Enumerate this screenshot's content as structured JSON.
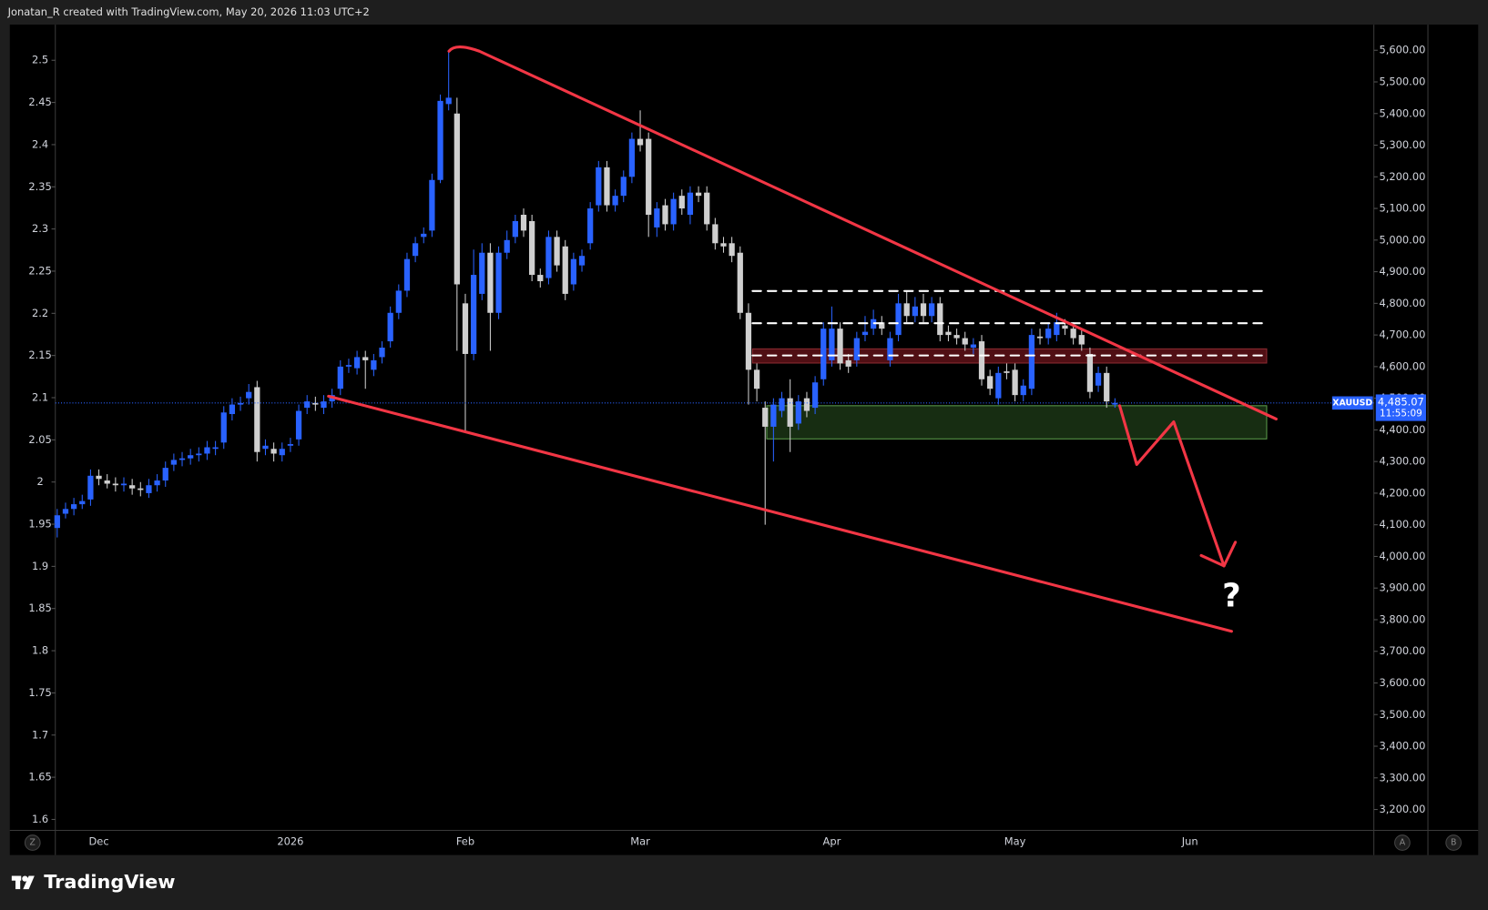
{
  "header": {
    "text": "Jonatan_R created with TradingView.com, May 20, 2026 11:03 UTC+2"
  },
  "chart_data": {
    "type": "candlestick",
    "categories": [
      null,
      null,
      null,
      null,
      null,
      "Dec",
      null,
      null,
      null,
      null,
      null,
      null,
      null,
      null,
      null,
      null,
      null,
      null,
      null,
      null,
      null,
      null,
      null,
      null,
      null,
      null,
      null,
      null,
      "2026",
      null,
      null,
      null,
      null,
      null,
      null,
      null,
      null,
      null,
      null,
      null,
      null,
      null,
      null,
      null,
      null,
      null,
      null,
      null,
      null,
      "Feb",
      null,
      null,
      null,
      null,
      null,
      null,
      null,
      null,
      null,
      null,
      null,
      null,
      null,
      null,
      null,
      null,
      null,
      null,
      null,
      null,
      "Mar",
      null,
      null,
      null,
      null,
      null,
      null,
      null,
      null,
      null,
      null,
      null,
      null,
      null,
      null,
      null,
      null,
      null,
      null,
      null,
      null,
      null,
      null,
      "Apr",
      null,
      null,
      null,
      null,
      null,
      null,
      null,
      null,
      null,
      null,
      null,
      null,
      null,
      null,
      null,
      null,
      null,
      null,
      null,
      null,
      null,
      "May",
      null,
      null,
      null,
      null,
      null,
      null,
      null,
      null,
      null,
      null,
      null,
      null,
      null,
      null,
      null,
      null,
      null,
      null,
      null,
      null,
      "Jun",
      null,
      null,
      null,
      null,
      null,
      null,
      null,
      null,
      null,
      null,
      null,
      null,
      null,
      null,
      null,
      null,
      null,
      null,
      null,
      null,
      null,
      null
    ],
    "open": [
      4090,
      4135,
      4150,
      4165,
      4180,
      4255,
      4240,
      4230,
      4225,
      4225,
      4215,
      4200,
      4225,
      4240,
      4290,
      4305,
      4310,
      4320,
      4325,
      4340,
      4360,
      4450,
      4480,
      4500,
      4535,
      4340,
      4340,
      4320,
      4350,
      4370,
      4470,
      4485,
      4470,
      4490,
      4530,
      4600,
      4595,
      4630,
      4590,
      4630,
      4680,
      4770,
      4840,
      4950,
      5010,
      5030,
      5190,
      5430,
      5400,
      4800,
      4640,
      4830,
      4960,
      4770,
      4960,
      5010,
      5080,
      5060,
      4890,
      4880,
      5010,
      4980,
      4860,
      4920,
      4990,
      5110,
      5230,
      5110,
      5140,
      5200,
      5320,
      5320,
      5040,
      5110,
      5050,
      5140,
      5080,
      5150,
      5150,
      5050,
      4990,
      4990,
      4960,
      4770,
      4590,
      4470,
      4410,
      4460,
      4500,
      4420,
      4500,
      4470,
      4560,
      4620,
      4720,
      4620,
      4620,
      4700,
      4720,
      4740,
      4620,
      4700,
      4800,
      4760,
      4800,
      4760,
      4800,
      4710,
      4700,
      4690,
      4660,
      4680,
      4570,
      4500,
      4585,
      4590,
      4510,
      4530,
      4695,
      4690,
      4700,
      4730,
      4720,
      4700,
      4640,
      4540,
      4580,
      4480,
      null,
      null,
      null,
      null,
      null,
      null,
      null,
      null,
      null,
      null,
      null,
      null,
      null,
      null,
      null,
      null,
      null,
      null,
      null,
      null,
      null,
      null,
      null,
      null,
      null,
      null,
      null,
      null,
      null,
      null,
      null
    ],
    "high": [
      4150,
      4170,
      4185,
      4195,
      4275,
      4275,
      4260,
      4250,
      4250,
      4245,
      4235,
      4245,
      4260,
      4300,
      4325,
      4330,
      4340,
      4345,
      4365,
      4365,
      4475,
      4500,
      4505,
      4545,
      4555,
      4370,
      4360,
      4360,
      4375,
      4480,
      4510,
      4505,
      4510,
      4530,
      4620,
      4625,
      4650,
      4650,
      4640,
      4680,
      4790,
      4860,
      4960,
      5010,
      5040,
      5210,
      5460,
      5600,
      5450,
      4830,
      4970,
      4990,
      4990,
      4980,
      5030,
      5080,
      5100,
      5080,
      4910,
      5030,
      5030,
      5000,
      4960,
      4970,
      5120,
      5250,
      5250,
      5160,
      5220,
      5340,
      5410,
      5340,
      5120,
      5130,
      5150,
      5160,
      5170,
      5170,
      5170,
      5070,
      5010,
      5010,
      4980,
      4800,
      4610,
      4490,
      4500,
      4520,
      4560,
      4510,
      4520,
      4570,
      4740,
      4790,
      4740,
      4640,
      4710,
      4760,
      4780,
      4760,
      4710,
      4830,
      4840,
      4820,
      4830,
      4820,
      4820,
      4730,
      4720,
      4710,
      4690,
      4700,
      4590,
      4600,
      4610,
      4610,
      4560,
      4720,
      4720,
      4740,
      4770,
      4750,
      4740,
      4720,
      4660,
      4600,
      4600,
      4500,
      null,
      null,
      null,
      null,
      null,
      null,
      null,
      null,
      null,
      null,
      null,
      null,
      null,
      null,
      null,
      null,
      null,
      null,
      null,
      null,
      null,
      null,
      null,
      null,
      null,
      null,
      null,
      null,
      null,
      null,
      null
    ],
    "low": [
      4060,
      4120,
      4130,
      4150,
      4160,
      4225,
      4215,
      4205,
      4205,
      4195,
      4190,
      4185,
      4205,
      4220,
      4270,
      4285,
      4290,
      4300,
      4305,
      4320,
      4340,
      4430,
      4460,
      4480,
      4300,
      4320,
      4300,
      4300,
      4330,
      4350,
      4450,
      4460,
      4450,
      4470,
      4510,
      4580,
      4575,
      4530,
      4570,
      4610,
      4660,
      4750,
      4820,
      4930,
      4990,
      5010,
      5180,
      5410,
      4650,
      4395,
      4620,
      4810,
      4650,
      4750,
      4940,
      4990,
      5010,
      4870,
      4850,
      4860,
      4900,
      4810,
      4840,
      4900,
      4970,
      5090,
      5090,
      5090,
      5120,
      5180,
      5280,
      5010,
      5010,
      5030,
      5030,
      5080,
      5050,
      5120,
      5030,
      4970,
      4960,
      4930,
      4750,
      4480,
      4490,
      4100,
      4300,
      4440,
      4330,
      4400,
      4440,
      4450,
      4540,
      4600,
      4590,
      4580,
      4600,
      4680,
      4700,
      4700,
      4600,
      4680,
      4740,
      4740,
      4740,
      4740,
      4680,
      4680,
      4670,
      4650,
      4640,
      4540,
      4510,
      4480,
      4560,
      4490,
      4490,
      4510,
      4670,
      4670,
      4680,
      4700,
      4670,
      4650,
      4500,
      4520,
      4470,
      4470,
      null,
      null,
      null,
      null,
      null,
      null,
      null,
      null,
      null,
      null,
      null,
      null,
      null,
      null,
      null,
      null,
      null,
      null,
      null,
      null,
      null,
      null,
      null,
      null,
      null,
      null,
      null,
      null,
      null,
      null,
      null
    ],
    "close": [
      4130,
      4150,
      4165,
      4175,
      4255,
      4245,
      4230,
      4225,
      4230,
      4215,
      4210,
      4225,
      4240,
      4280,
      4305,
      4310,
      4320,
      4325,
      4345,
      4345,
      4455,
      4480,
      4485,
      4520,
      4330,
      4350,
      4325,
      4340,
      4355,
      4460,
      4490,
      4480,
      4490,
      4510,
      4600,
      4605,
      4630,
      4620,
      4620,
      4660,
      4770,
      4840,
      4940,
      4990,
      5020,
      5190,
      5440,
      5450,
      4860,
      4640,
      4890,
      4960,
      4770,
      4960,
      5000,
      5060,
      5030,
      4890,
      4870,
      5010,
      4920,
      4830,
      4940,
      4950,
      5100,
      5230,
      5110,
      5140,
      5200,
      5320,
      5300,
      5080,
      5100,
      5050,
      5130,
      5100,
      5150,
      5140,
      5050,
      4990,
      4980,
      4950,
      4770,
      4590,
      4530,
      4410,
      4480,
      4500,
      4410,
      4490,
      4460,
      4550,
      4720,
      4720,
      4610,
      4600,
      4690,
      4710,
      4750,
      4720,
      4690,
      4800,
      4760,
      4790,
      4760,
      4800,
      4700,
      4700,
      4690,
      4670,
      4670,
      4560,
      4530,
      4580,
      4580,
      4510,
      4540,
      4700,
      4690,
      4720,
      4740,
      4720,
      4690,
      4670,
      4520,
      4580,
      4490,
      4485.07,
      null,
      null,
      null,
      null,
      null,
      null,
      null,
      null,
      null,
      null,
      null,
      null,
      null,
      null,
      null,
      null,
      null,
      null,
      null,
      null,
      null,
      null,
      null,
      null,
      null,
      null,
      null,
      null,
      null,
      null,
      null
    ],
    "up_color": "#2962ff",
    "down_color": "#cfcfcf",
    "ylim": [
      3134,
      5675
    ],
    "yticks": [
      {
        "value": 3200,
        "label": "3,200.00"
      },
      {
        "value": 3300,
        "label": "3,300.00"
      },
      {
        "value": 3400,
        "label": "3,400.00"
      },
      {
        "value": 3500,
        "label": "3,500.00"
      },
      {
        "value": 3600,
        "label": "3,600.00"
      },
      {
        "value": 3700,
        "label": "3,700.00"
      },
      {
        "value": 3800,
        "label": "3,800.00"
      },
      {
        "value": 3900,
        "label": "3,900.00"
      },
      {
        "value": 4000,
        "label": "4,000.00"
      },
      {
        "value": 4100,
        "label": "4,100.00"
      },
      {
        "value": 4200,
        "label": "4,200.00"
      },
      {
        "value": 4300,
        "label": "4,300.00"
      },
      {
        "value": 4400,
        "label": "4,400.00"
      },
      {
        "value": 4500,
        "label": "4,500.00"
      },
      {
        "value": 4600,
        "label": "4,600.00"
      },
      {
        "value": 4700,
        "label": "4,700.00"
      },
      {
        "value": 4800,
        "label": "4,800.00"
      },
      {
        "value": 4900,
        "label": "4,900.00"
      },
      {
        "value": 5000,
        "label": "5,000.00"
      },
      {
        "value": 5100,
        "label": "5,100.00"
      },
      {
        "value": 5200,
        "label": "5,200.00"
      },
      {
        "value": 5300,
        "label": "5,300.00"
      },
      {
        "value": 5400,
        "label": "5,400.00"
      },
      {
        "value": 5500,
        "label": "5,500.00"
      },
      {
        "value": 5600,
        "label": "5,600.00"
      }
    ],
    "y2lim": [
      1.587,
      2.54
    ],
    "y2ticks": [
      1.6,
      1.65,
      1.7,
      1.75,
      1.8,
      1.85,
      1.9,
      1.95,
      2,
      2.05,
      2.1,
      2.15,
      2.2,
      2.25,
      2.3,
      2.35,
      2.4,
      2.45,
      2.5
    ],
    "last_price": {
      "symbol": "XAUUSD",
      "value": 4485.07,
      "label": "4,485.07",
      "countdown": "11:55:09"
    }
  },
  "ui": {
    "buttons": [
      "Z",
      "A",
      "B"
    ],
    "annotation": "?",
    "brand": "TradingView"
  }
}
